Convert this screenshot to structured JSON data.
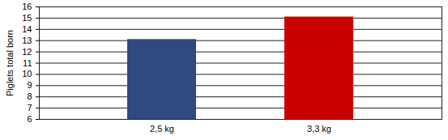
{
  "chart_data": {
    "type": "bar",
    "categories": [
      "2,5 kg",
      "3,3 kg"
    ],
    "values": [
      13.1,
      15.1
    ],
    "colors": [
      "#2E4A7E",
      "#CC0000"
    ],
    "y_label": "Piglets total born",
    "ylim": [
      6,
      16
    ],
    "yticks": [
      6,
      7,
      8,
      9,
      10,
      11,
      12,
      13,
      14,
      15,
      16
    ],
    "grid": true
  }
}
